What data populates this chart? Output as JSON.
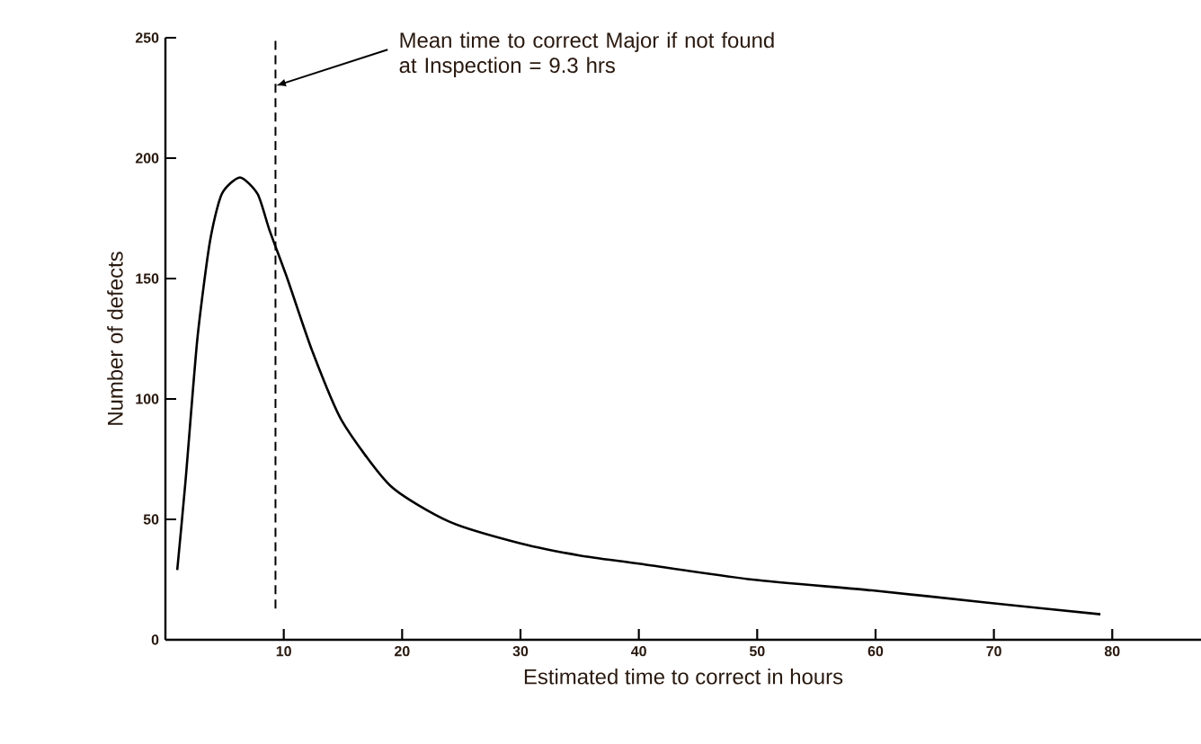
{
  "chart_data": {
    "type": "line",
    "xlabel": "Estimated time to correct in hours",
    "ylabel": "Number of defects",
    "x": [
      1,
      1.7,
      2.7,
      3.75,
      4.75,
      6.3,
      7.8,
      8.8,
      10.3,
      12.4,
      14.9,
      19,
      24,
      30,
      35,
      40,
      49.6,
      59.7,
      69.3,
      79
    ],
    "series": [
      {
        "color": "#000000",
        "values": [
          29,
          66,
          125,
          165,
          185,
          192,
          185,
          170,
          150,
          120,
          91,
          64,
          49,
          40,
          35,
          31.6,
          25,
          20.5,
          15.5,
          10.6
        ]
      }
    ],
    "xlim": [
      0,
      87.5
    ],
    "ylim": [
      0,
      250
    ],
    "xticks": [
      10,
      20,
      30,
      40,
      50,
      60,
      70,
      80
    ],
    "yticks": [
      0,
      50,
      100,
      150,
      200,
      250
    ],
    "ref_lines": [
      {
        "axis": "x",
        "value": 9.3,
        "line_style": "dashed",
        "color": "#000000"
      }
    ],
    "annotations": [
      {
        "text": "Mean time to correct  Major if not found at Inspection = 9.3 hrs",
        "x": 9.3,
        "y": 230
      }
    ],
    "grid": false,
    "marker": "none",
    "line_style": "solid"
  }
}
